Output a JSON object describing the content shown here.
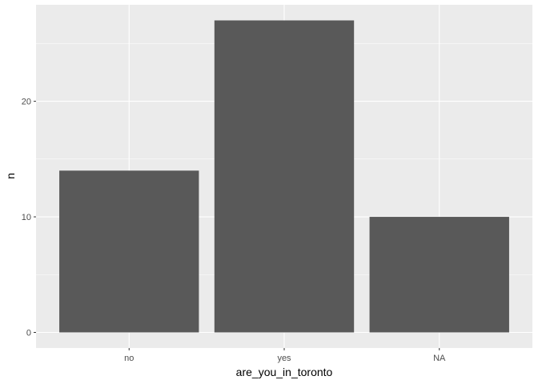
{
  "chart_data": {
    "type": "bar",
    "categories": [
      "no",
      "yes",
      "NA"
    ],
    "values": [
      14,
      27,
      10
    ],
    "xlabel": "are_you_in_toronto",
    "ylabel": "n",
    "ylim": [
      -1.35,
      28.35
    ],
    "yticks": [
      0,
      10,
      20
    ],
    "grid": true,
    "colors": {
      "panel": "#ebebeb",
      "grid_major": "#ffffff",
      "bar": "#595959",
      "tick_text": "#4d4d4d",
      "tick_mark": "#333333"
    }
  }
}
